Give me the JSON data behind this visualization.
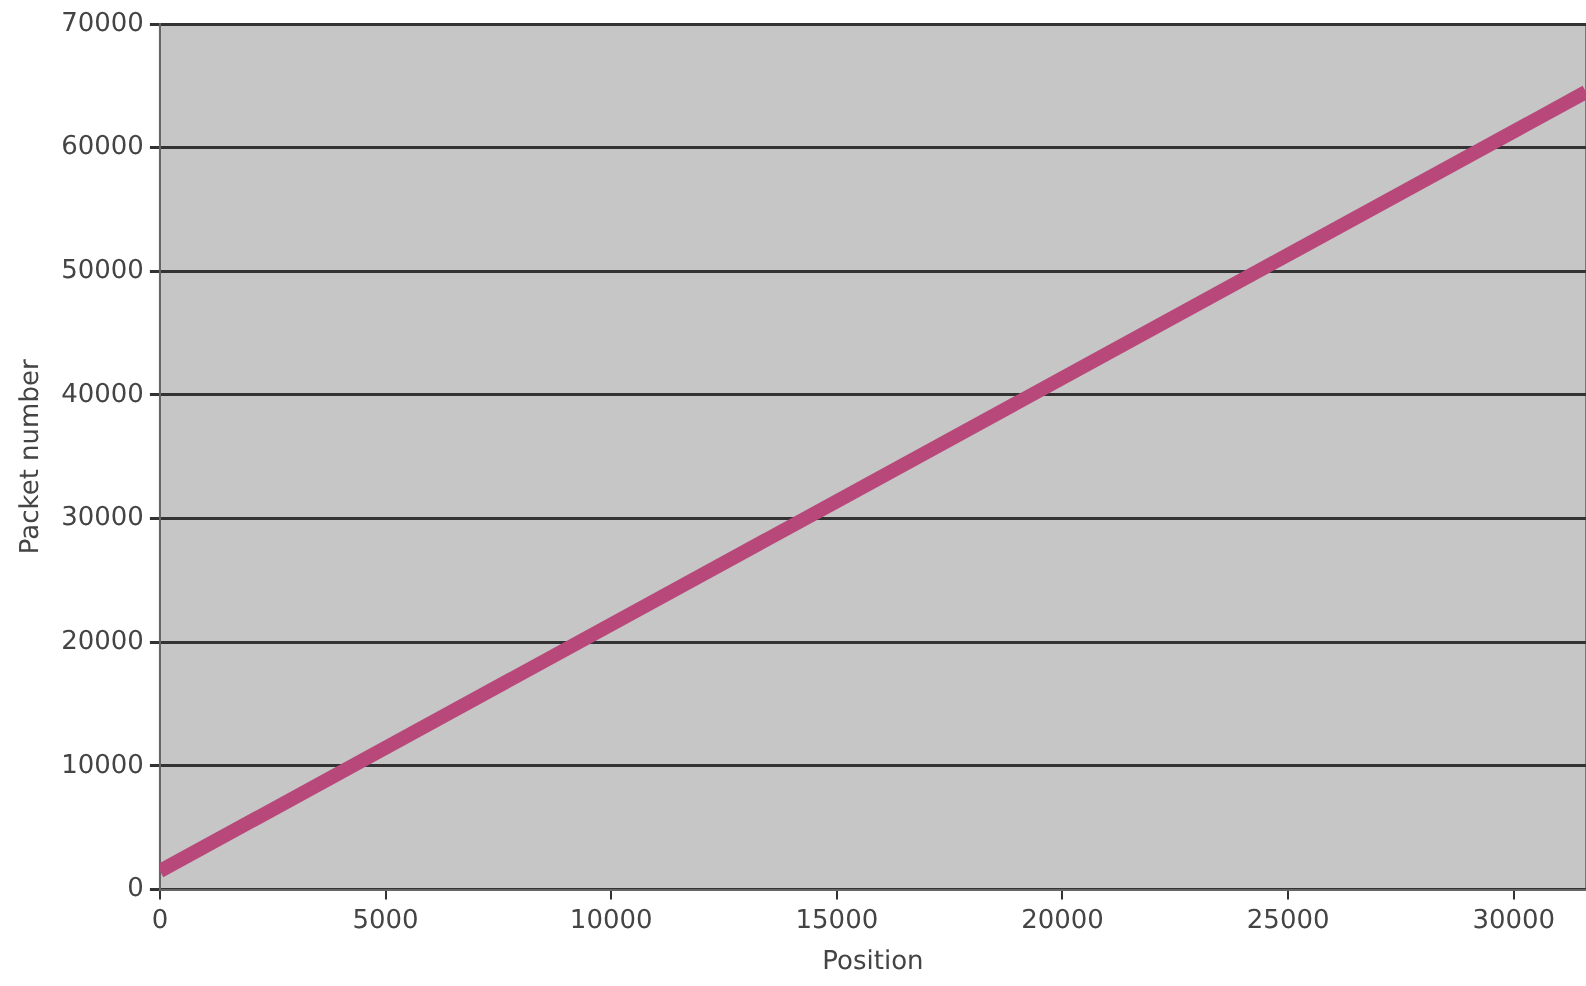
{
  "chart_data": {
    "type": "line",
    "xlabel": "Position",
    "ylabel": "Packet number",
    "x": [
      0,
      31600
    ],
    "series": [
      {
        "color": "#b8477a",
        "values": [
          1500,
          64500
        ]
      }
    ],
    "xlim": [
      0,
      31600
    ],
    "xticks": [
      0,
      5000,
      10000,
      15000,
      20000,
      25000,
      30000
    ],
    "ylim": [
      0,
      70000
    ],
    "yticks": [
      0,
      10000,
      20000,
      30000,
      40000,
      50000,
      60000,
      70000
    ],
    "grid": "y",
    "legend": false,
    "marker": "none",
    "line_style": "solid"
  }
}
